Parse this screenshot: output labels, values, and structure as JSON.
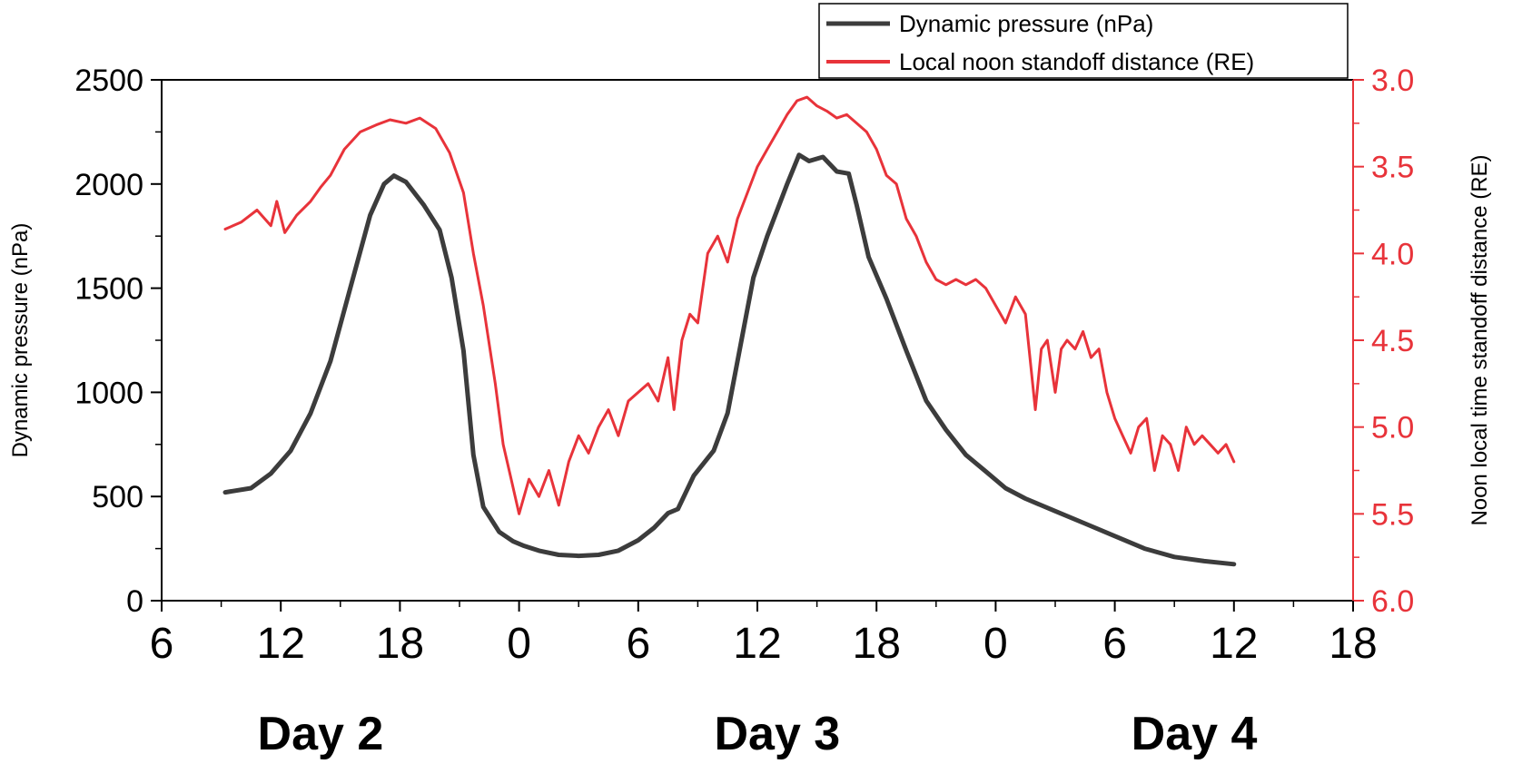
{
  "chart_data": {
    "type": "line",
    "title": "",
    "xlabel": "",
    "x_ticks": [
      "6",
      "12",
      "18",
      "0",
      "6",
      "12",
      "18",
      "0",
      "6",
      "12",
      "18"
    ],
    "xlim_hours": [
      30,
      90
    ],
    "day_labels": [
      {
        "text": "Day 2",
        "hour": 38
      },
      {
        "text": "Day 3",
        "hour": 61
      },
      {
        "text": "Day 4",
        "hour": 82
      }
    ],
    "y_left": {
      "label": "Dynamic pressure (nPa)",
      "ylim": [
        0,
        2500
      ],
      "ticks": [
        "0",
        "500",
        "1000",
        "1500",
        "2000",
        "2500"
      ],
      "color": "#000000"
    },
    "y_right": {
      "label": "Noon local time standoff distance (RE)",
      "ylim": [
        3.0,
        6.0
      ],
      "inverted": true,
      "ticks": [
        "3.0",
        "3.5",
        "4.0",
        "4.5",
        "5.0",
        "5.5",
        "6.0"
      ],
      "color": "#e8333a"
    },
    "legend": {
      "placement": "top-right",
      "entries": [
        {
          "label": "Dynamic pressure (nPa)",
          "color": "#3c3c3c"
        },
        {
          "label": "Local noon standoff distance (RE)",
          "color": "#e8333a"
        }
      ]
    },
    "series": [
      {
        "name": "Dynamic pressure (nPa)",
        "axis": "left",
        "color": "#3c3c3c",
        "x_hours": [
          33.2,
          34.5,
          35.5,
          36.5,
          37.5,
          38.5,
          39.5,
          40.5,
          41.2,
          41.7,
          42.3,
          43.2,
          44.0,
          44.6,
          45.2,
          45.7,
          46.2,
          47.0,
          47.7,
          48.2,
          49.0,
          50.0,
          51.0,
          52.0,
          53.0,
          54.0,
          54.8,
          55.5,
          56.0,
          56.8,
          57.8,
          58.5,
          59.2,
          59.8,
          60.5,
          61.5,
          62.1,
          62.6,
          63.3,
          64.0,
          64.6,
          65.0,
          65.6,
          66.5,
          67.5,
          68.5,
          69.5,
          70.5,
          71.5,
          72.5,
          73.5,
          75.0,
          76.5,
          78.0,
          79.5,
          81.0,
          82.5,
          84.0
        ],
        "y": [
          520,
          540,
          610,
          720,
          900,
          1150,
          1500,
          1850,
          2000,
          2040,
          2010,
          1900,
          1780,
          1550,
          1200,
          700,
          450,
          330,
          285,
          265,
          240,
          220,
          215,
          220,
          240,
          290,
          350,
          420,
          440,
          600,
          720,
          900,
          1250,
          1550,
          1750,
          2000,
          2140,
          2110,
          2130,
          2060,
          2050,
          1900,
          1650,
          1450,
          1200,
          960,
          820,
          700,
          620,
          540,
          490,
          430,
          370,
          310,
          250,
          210,
          190,
          175
        ]
      },
      {
        "name": "Local noon standoff distance (RE)",
        "axis": "right",
        "color": "#e8333a",
        "x_hours": [
          33.2,
          34.0,
          34.8,
          35.5,
          35.8,
          36.2,
          36.8,
          37.5,
          38.0,
          38.5,
          39.2,
          40.0,
          40.8,
          41.5,
          42.3,
          43.0,
          43.8,
          44.5,
          45.2,
          45.7,
          46.2,
          46.8,
          47.2,
          47.6,
          48.0,
          48.5,
          49.0,
          49.5,
          50.0,
          50.5,
          51.0,
          51.5,
          52.0,
          52.5,
          53.0,
          53.5,
          54.0,
          54.5,
          55.0,
          55.5,
          55.8,
          56.2,
          56.6,
          57.0,
          57.5,
          58.0,
          58.5,
          59.0,
          59.5,
          60.0,
          60.5,
          61.0,
          61.5,
          62.0,
          62.5,
          63.0,
          63.5,
          64.0,
          64.5,
          65.0,
          65.5,
          66.0,
          66.5,
          67.0,
          67.5,
          68.0,
          68.5,
          69.0,
          69.5,
          70.0,
          70.5,
          71.0,
          71.5,
          72.0,
          72.5,
          73.0,
          73.5,
          74.0,
          74.3,
          74.6,
          75.0,
          75.3,
          75.6,
          76.0,
          76.4,
          76.8,
          77.2,
          77.6,
          78.0,
          78.4,
          78.8,
          79.2,
          79.6,
          80.0,
          80.4,
          80.8,
          81.2,
          81.6,
          82.0,
          82.4,
          82.8,
          83.2,
          83.6,
          84.0
        ],
        "y": [
          3.86,
          3.82,
          3.75,
          3.84,
          3.7,
          3.88,
          3.78,
          3.7,
          3.62,
          3.55,
          3.4,
          3.3,
          3.26,
          3.23,
          3.25,
          3.22,
          3.28,
          3.42,
          3.65,
          4.0,
          4.3,
          4.75,
          5.1,
          5.3,
          5.5,
          5.3,
          5.4,
          5.25,
          5.45,
          5.2,
          5.05,
          5.15,
          5.0,
          4.9,
          5.05,
          4.85,
          4.8,
          4.75,
          4.85,
          4.6,
          4.9,
          4.5,
          4.35,
          4.4,
          4.0,
          3.9,
          4.05,
          3.8,
          3.65,
          3.5,
          3.4,
          3.3,
          3.2,
          3.12,
          3.1,
          3.15,
          3.18,
          3.22,
          3.2,
          3.25,
          3.3,
          3.4,
          3.55,
          3.6,
          3.8,
          3.9,
          4.05,
          4.15,
          4.18,
          4.15,
          4.18,
          4.15,
          4.2,
          4.3,
          4.4,
          4.25,
          4.35,
          4.9,
          4.55,
          4.5,
          4.8,
          4.55,
          4.5,
          4.55,
          4.45,
          4.6,
          4.55,
          4.8,
          4.95,
          5.05,
          5.15,
          5.0,
          4.95,
          5.25,
          5.05,
          5.1,
          5.25,
          5.0,
          5.1,
          5.05,
          5.1,
          5.15,
          5.1,
          5.2
        ]
      }
    ]
  }
}
